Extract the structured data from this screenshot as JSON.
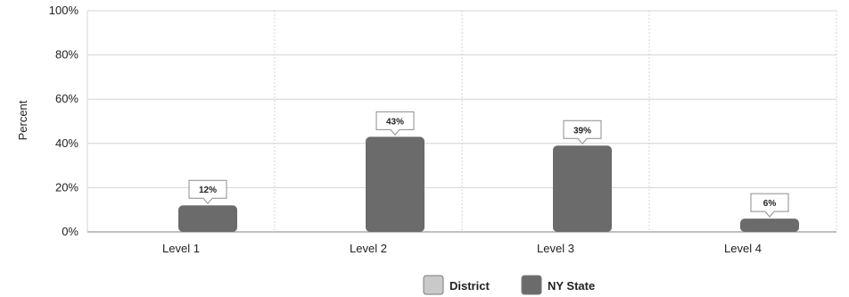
{
  "chart_data": {
    "type": "bar",
    "title": "",
    "xlabel": "",
    "ylabel": "Percent",
    "ylim": [
      0,
      100
    ],
    "y_ticks": [
      "0%",
      "20%",
      "40%",
      "60%",
      "80%",
      "100%"
    ],
    "categories": [
      "Level 1",
      "Level 2",
      "Level 3",
      "Level 4"
    ],
    "series": [
      {
        "name": "District",
        "values": [
          null,
          null,
          null,
          null
        ],
        "color": "#c9c9c9"
      },
      {
        "name": "NY State",
        "values": [
          12,
          43,
          39,
          6
        ],
        "color": "#6b6b6b"
      }
    ],
    "data_labels": [
      "12%",
      "43%",
      "39%",
      "6%"
    ],
    "grid": true,
    "legend": "bottom-center"
  }
}
